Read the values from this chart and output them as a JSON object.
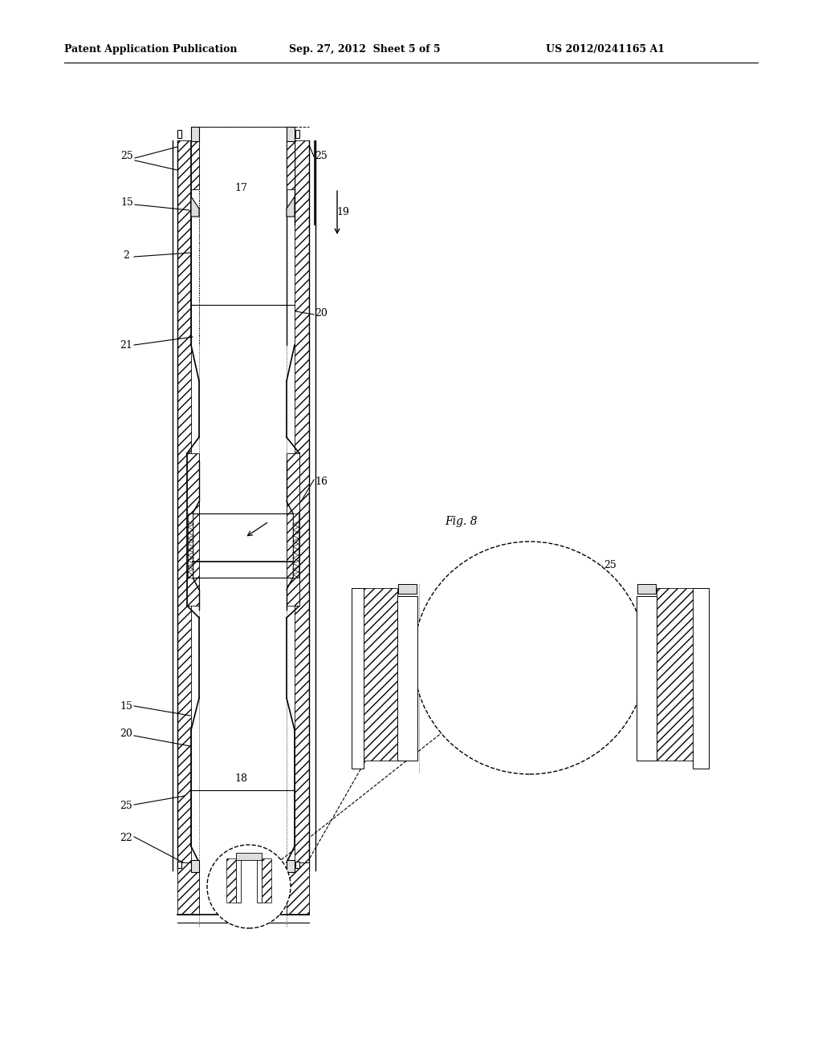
{
  "title_left": "Patent Application Publication",
  "title_center": "Sep. 27, 2012  Sheet 5 of 5",
  "title_right": "US 2012/0241165 A1",
  "fig_label": "Fig. 8",
  "bg_color": "#ffffff",
  "line_color": "#000000"
}
